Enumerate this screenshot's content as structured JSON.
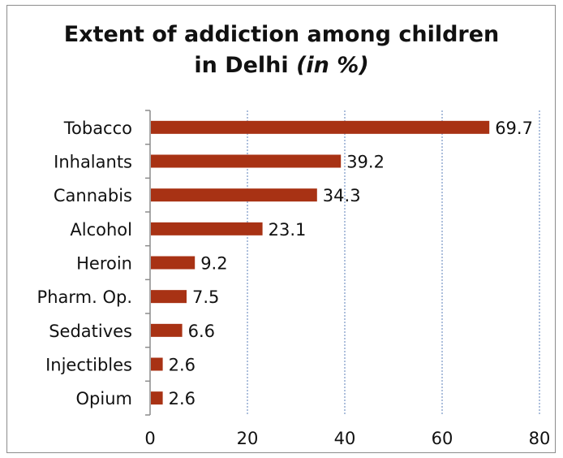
{
  "chart_data": {
    "type": "bar",
    "orientation": "horizontal",
    "title_main": "Extent of addiction among children",
    "title_line2": "in Delhi ",
    "title_unit": "(in %)",
    "categories": [
      "Tobacco",
      "Inhalants",
      "Cannabis",
      "Alcohol",
      "Heroin",
      "Pharm. Op.",
      "Sedatives",
      "Injectibles",
      "Opium"
    ],
    "values": [
      69.7,
      39.2,
      34.3,
      23.1,
      9.2,
      7.5,
      6.6,
      2.6,
      2.6
    ],
    "data_labels": [
      "69.7",
      "39.2",
      "34.3",
      "23.1",
      "9.2",
      "7.5",
      "6.6",
      "2.6",
      "2.6"
    ],
    "xlim": [
      0,
      80
    ],
    "x_ticks": [
      0,
      20,
      40,
      60,
      80
    ],
    "x_tick_labels": [
      "0",
      "20",
      "40",
      "60",
      "80"
    ],
    "bar_color": "#a83214",
    "grid_color": "#5b7fb8",
    "grid": true,
    "legend": "none"
  }
}
